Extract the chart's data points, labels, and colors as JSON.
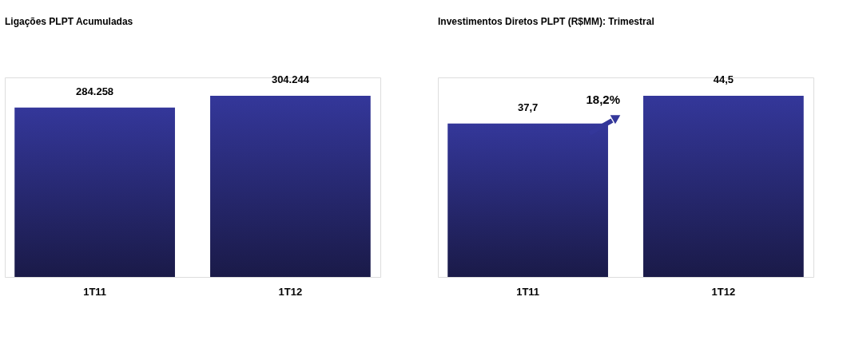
{
  "chart_data": [
    {
      "type": "bar",
      "title": "Ligações PLPT Acumuladas",
      "categories": [
        "1T11",
        "1T12"
      ],
      "values": [
        284258,
        304244
      ],
      "value_labels": [
        "284.258",
        "304.244"
      ],
      "color": "#34379a",
      "ylim": [
        0,
        335000
      ]
    },
    {
      "type": "bar",
      "title": "Investimentos Diretos PLPT (R$MM): Trimestral",
      "categories": [
        "1T11",
        "1T12"
      ],
      "values": [
        37.7,
        44.5
      ],
      "value_labels": [
        "37,7",
        "44,5"
      ],
      "color": "#34379a",
      "ylim": [
        0,
        49
      ],
      "annotations": [
        "18,2%"
      ]
    }
  ]
}
